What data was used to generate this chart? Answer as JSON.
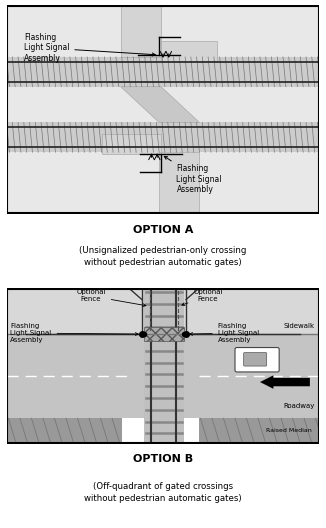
{
  "fig_width": 3.26,
  "fig_height": 5.28,
  "dpi": 100,
  "bg_color": "#ffffff",
  "option_a_title": "OPTION A",
  "option_a_subtitle": "(Unsignalized pedestrian-only crossing\nwithout pedestrian automatic gates)",
  "option_b_title": "OPTION B",
  "option_b_subtitle": "(Off-quadrant of gated crossings\nwithout pedestrian automatic gates)",
  "label_flashing_tl": "Flashing\nLight Signal\nAssembly",
  "label_flashing_br": "Flashing\nLight Signal\nAssembly",
  "label_flashing_bl": "Flashing\nLight Signal\nAssembly",
  "label_flashing_br2": "Flashing\nLight Signal\nAssembly",
  "label_opt_fence_l": "Optional\nFence",
  "label_opt_fence_r": "Optional\nFence",
  "label_sidewalk": "Sidewalk",
  "label_roadway": "Roadway",
  "label_raised_median": "Raised Median",
  "color_bg_light": "#e8e8e8",
  "color_track_bg": "#c8c8c8",
  "color_track_tick": "#555555",
  "color_rail": "#333333",
  "color_path": "#d4d4d4",
  "color_path_edge": "#999999",
  "color_sidewalk": "#d0d0d0",
  "color_road": "#b8b8b8",
  "color_median": "#999999",
  "color_black": "#000000",
  "color_border": "#000000"
}
